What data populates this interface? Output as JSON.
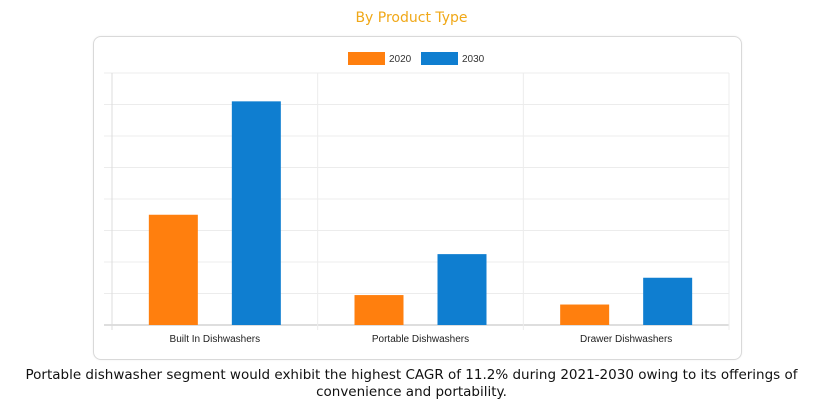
{
  "title": "By Product Type",
  "caption": "Portable dishwasher segment would exhibit the highest CAGR of 11.2% during 2021-2030 owing to its offerings of convenience and portability.",
  "colors": {
    "series_2020": "#ff7f0e",
    "series_2030": "#0f7ed0",
    "title": "#f0a818"
  },
  "chart_data": {
    "type": "bar",
    "categories": [
      "Built In Dishwashers",
      "Portable Dishwashers",
      "Drawer Dishwashers"
    ],
    "series": [
      {
        "name": "2020",
        "values": [
          3.5,
          0.95,
          0.65
        ]
      },
      {
        "name": "2030",
        "values": [
          7.1,
          2.25,
          1.5
        ]
      }
    ],
    "ylim": [
      0,
      8
    ],
    "grid": true,
    "legend": "top-center",
    "xlabel": "",
    "ylabel": ""
  }
}
